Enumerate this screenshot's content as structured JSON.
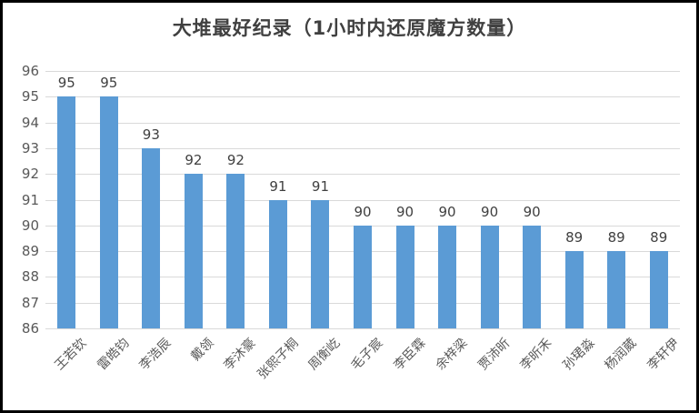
{
  "chart_data": {
    "type": "bar",
    "title": "大堆最好纪录（1小时内还原魔方数量）",
    "categories": [
      "王若钦",
      "雷皓钧",
      "李浩辰",
      "戴领",
      "李沐豪",
      "张熙子桐",
      "周衡屹",
      "毛子宸",
      "李臣霖",
      "余梓梁",
      "贾沛昕",
      "李昕禾",
      "孙珺淼",
      "杨润葳",
      "李轩伊"
    ],
    "values": [
      95,
      95,
      93,
      92,
      92,
      91,
      91,
      90,
      90,
      90,
      90,
      90,
      89,
      89,
      89
    ],
    "xlabel": "",
    "ylabel": "",
    "ylim": [
      86,
      96
    ],
    "ytick_step": 1,
    "yticks": [
      86,
      87,
      88,
      89,
      90,
      91,
      92,
      93,
      94,
      95,
      96
    ],
    "grid": "horizontal",
    "legend_position": "none",
    "data_labels": true,
    "colors": {
      "bar": "#5B9BD5",
      "gridline": "#D9D9D9",
      "axis_text": "#595959",
      "value_label": "#404040",
      "title": "#404040",
      "frame_border": "#000000"
    }
  }
}
